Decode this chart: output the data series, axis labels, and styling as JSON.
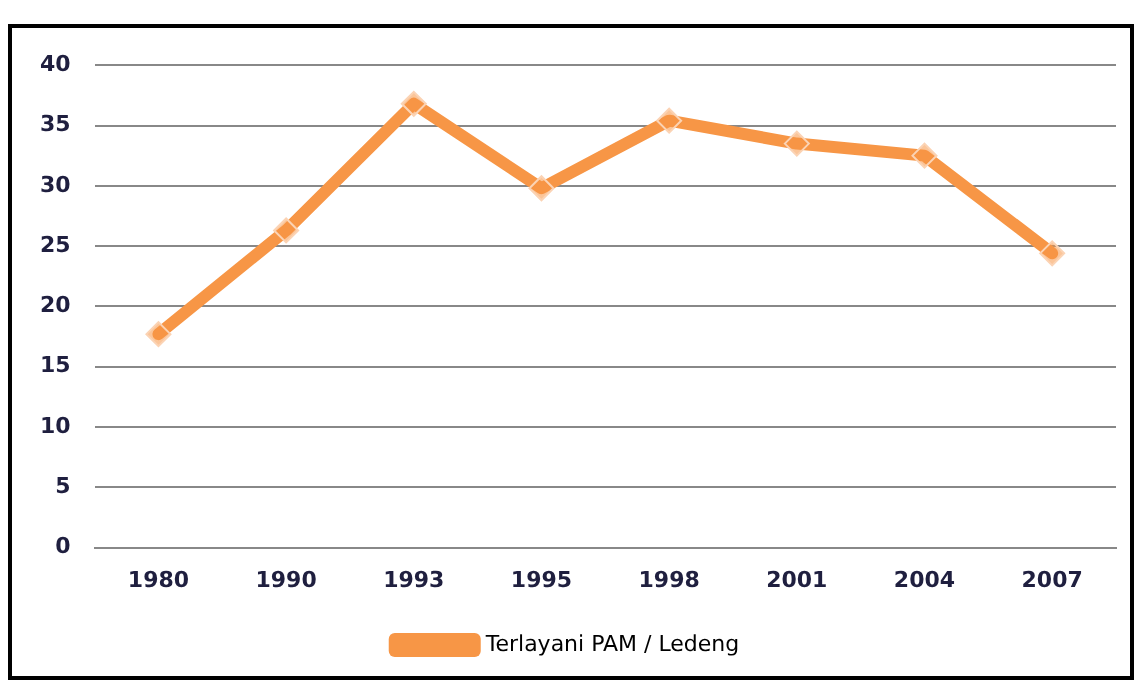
{
  "chart_data": {
    "type": "line",
    "categories": [
      "1980",
      "1990",
      "1993",
      "1995",
      "1998",
      "2001",
      "2004",
      "2007"
    ],
    "series": [
      {
        "name": "Terlayani PAM / Ledeng",
        "color": "#f79646",
        "values": [
          17.7,
          26.3,
          36.8,
          29.8,
          35.4,
          33.5,
          32.5,
          24.4
        ]
      }
    ],
    "ylim": [
      0,
      40
    ],
    "yticks": [
      0,
      5,
      10,
      15,
      20,
      25,
      30,
      35,
      40
    ],
    "grid": "y",
    "legend": "bottom",
    "marker": "diamond",
    "line_style": "solid"
  }
}
